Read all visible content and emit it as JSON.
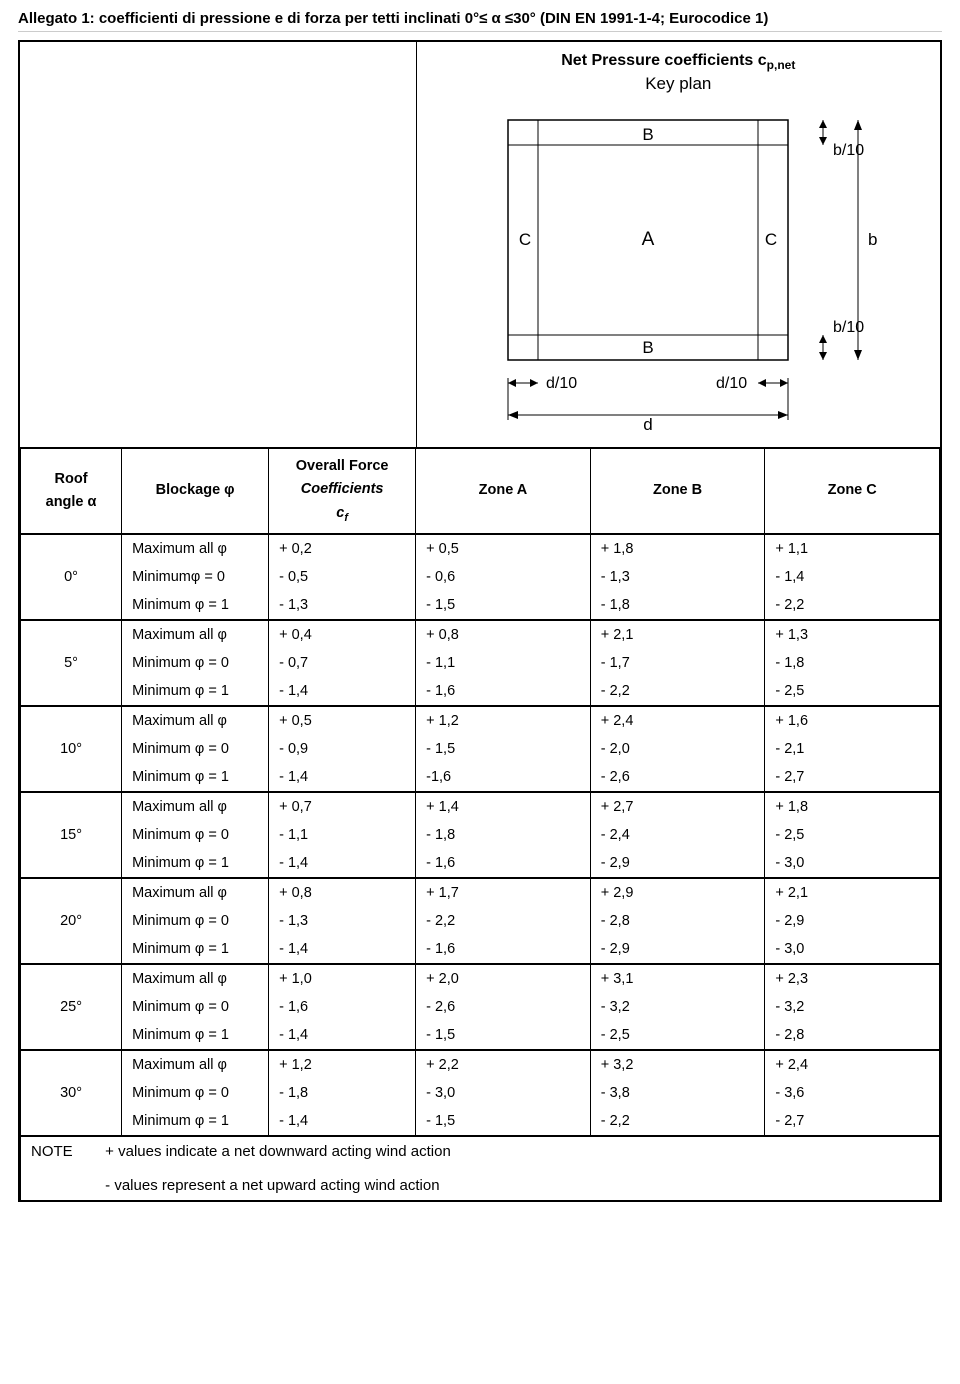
{
  "title": "Allegato 1: coefficienti di pressione e di forza per tetti inclinati 0°≤  α ≤30° (DIN EN 1991-1-4; Eurocodice 1)",
  "diagram": {
    "heading_html": "Net Pressure  coefficients c<sub>p,net</sub>",
    "subheading": "Key plan",
    "labels": {
      "A": "A",
      "B": "B",
      "C": "C",
      "b": "b",
      "b10": "b/10",
      "d": "d",
      "d10": "d/10"
    },
    "stroke": "#000000",
    "fill": "#ffffff",
    "font_size": 16
  },
  "columns": {
    "roof_angle_html": "Roof<br>angle α",
    "blockage": "Blockage φ",
    "overall_html": "Overall Force<br><span class=\"italic\">Coefficients<br>c<sub>f</sub></span>",
    "zoneA": "Zone A",
    "zoneB": "Zone B",
    "zoneC": "Zone C"
  },
  "blockage_labels": {
    "max": "Maximum all φ",
    "max_sp": "Maximum  all φ",
    "min0a": "Minimumφ = 0",
    "min0": "Minimum φ = 0",
    "min1": "Minimum φ = 1"
  },
  "rows": [
    {
      "angle": "0°",
      "r": [
        [
          "max",
          "+ 0,2",
          "+ 0,5",
          "+ 1,8",
          "+ 1,1"
        ],
        [
          "min0a",
          "- 0,5",
          "- 0,6",
          "- 1,3",
          "- 1,4"
        ],
        [
          "min1",
          "- 1,3",
          "- 1,5",
          "- 1,8",
          "- 2,2"
        ]
      ]
    },
    {
      "angle": "5°",
      "r": [
        [
          "max",
          "+ 0,4",
          "+ 0,8",
          "+ 2,1",
          "+ 1,3"
        ],
        [
          "min0",
          "- 0,7",
          "- 1,1",
          "- 1,7",
          "- 1,8"
        ],
        [
          "min1",
          "- 1,4",
          "- 1,6",
          "- 2,2",
          "- 2,5"
        ]
      ]
    },
    {
      "angle": "10°",
      "r": [
        [
          "max",
          "+ 0,5",
          "+ 1,2",
          "+ 2,4",
          "+ 1,6"
        ],
        [
          "min0",
          "- 0,9",
          "- 1,5",
          "- 2,0",
          "- 2,1"
        ],
        [
          "min1",
          "- 1,4",
          "-1,6",
          "- 2,6",
          "- 2,7"
        ]
      ]
    },
    {
      "angle": "15°",
      "r": [
        [
          "max",
          "+ 0,7",
          "+ 1,4",
          "+ 2,7",
          "+ 1,8"
        ],
        [
          "min0",
          "- 1,1",
          "- 1,8",
          "- 2,4",
          "- 2,5"
        ],
        [
          "min1",
          "- 1,4",
          "- 1,6",
          "- 2,9",
          "- 3,0"
        ]
      ]
    },
    {
      "angle": "20°",
      "r": [
        [
          "max_sp",
          "+ 0,8",
          "+ 1,7",
          "+ 2,9",
          "+ 2,1"
        ],
        [
          "min0",
          "- 1,3",
          "- 2,2",
          "- 2,8",
          "- 2,9"
        ],
        [
          "min1",
          "- 1,4",
          "- 1,6",
          "- 2,9",
          "- 3,0"
        ]
      ]
    },
    {
      "angle": "25°",
      "r": [
        [
          "max",
          "+ 1,0",
          "+ 2,0",
          "+ 3,1",
          "+ 2,3"
        ],
        [
          "min0",
          "- 1,6",
          "- 2,6",
          "- 3,2",
          "- 3,2"
        ],
        [
          "min1",
          "- 1,4",
          "- 1,5",
          "- 2,5",
          "- 2,8"
        ]
      ]
    },
    {
      "angle": "30°",
      "r": [
        [
          "max",
          "+ 1,2",
          "+ 2,2",
          "+ 3,2",
          "+ 2,4"
        ],
        [
          "min0",
          "- 1,8",
          "- 3,0",
          "- 3,8",
          "- 3,6"
        ],
        [
          "min1",
          "- 1,4",
          "- 1,5",
          "- 2,2",
          "- 2,7"
        ]
      ]
    }
  ],
  "note": {
    "label": "NOTE",
    "line1": "+ values indicate a net downward acting wind action",
    "line2": "- values represent a net upward acting wind action"
  }
}
